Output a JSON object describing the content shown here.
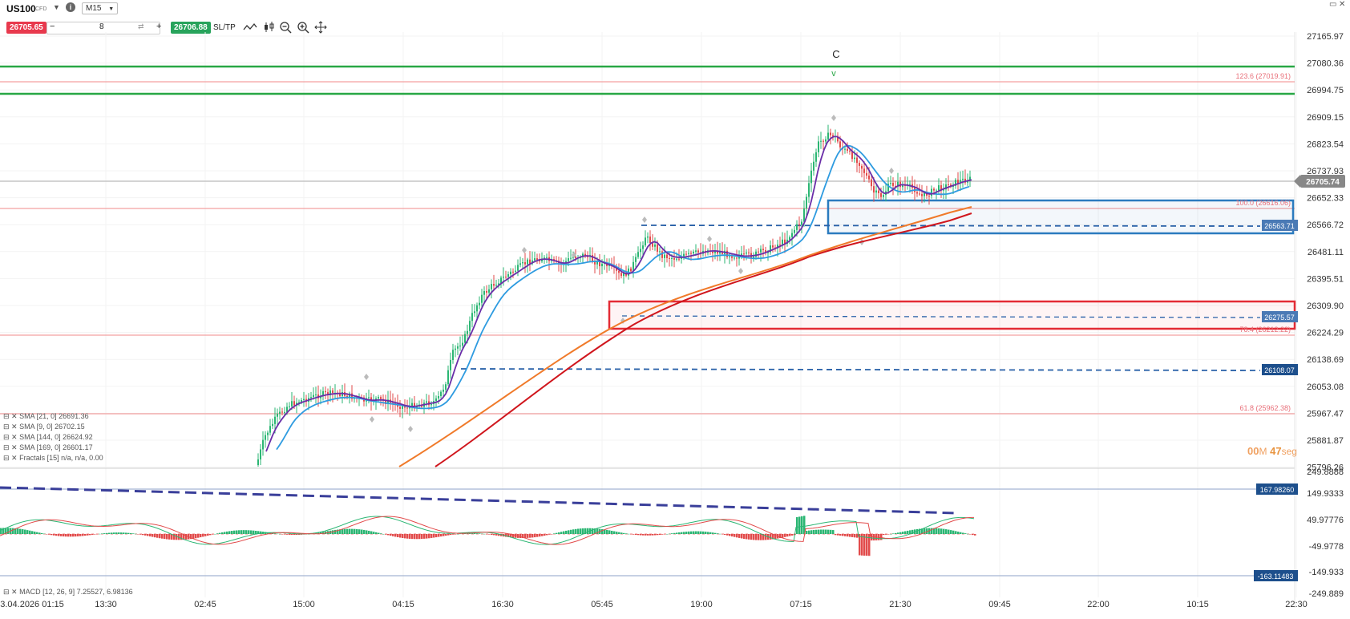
{
  "header": {
    "symbol": "US100",
    "symbol_type": "CFD",
    "timeframe": "M15",
    "sell_price": "26705.65",
    "quantity": "8",
    "buy_price": "26706.88",
    "sltp_label": "SL/TP",
    "minus": "−",
    "plus": "+"
  },
  "colors": {
    "sell": "#e8394d",
    "buy": "#27a35b",
    "ma_fast": "#6a2ea8",
    "ma_slow": "#2e9be0",
    "sma144": "#f07a2a",
    "sma169": "#d0161d",
    "zone_blue": "#2b7bbf",
    "zone_red": "#e32b35",
    "green_line": "#28a745"
  },
  "price_axis": {
    "labels": [
      "27165.97",
      "27080.36",
      "26994.75",
      "26909.15",
      "26823.54",
      "26737.93",
      "26652.33",
      "26566.72",
      "26481.11",
      "26395.51",
      "26309.90",
      "26224.29",
      "26138.69",
      "26053.08",
      "25967.47",
      "25881.87",
      "25796.26"
    ],
    "current_price": "26705.74",
    "badges": [
      "26563.71",
      "26275.57",
      "26108.07"
    ]
  },
  "fib_labels": [
    "123.6 (27019.91)",
    "100.0 (26616.06)",
    "78.4 (26212.22)",
    "61.8 (25962.38)"
  ],
  "wave_label": "C",
  "wave_marker": "v",
  "timer": {
    "minutes": "00",
    "m": "M",
    "seconds": "47",
    "s": "seg"
  },
  "indicators": [
    "SMA [21, 0] 26691.36",
    "SMA [9, 0] 26702.15",
    "SMA [144, 0] 26624.92",
    "SMA [169, 0] 26601.17",
    "Fractals [15] n/a, n/a, 0.00"
  ],
  "macd": {
    "label": "MACD [12, 26, 9] 7.25527, 6.98136",
    "axis_labels": [
      "249.8888",
      "149.9333",
      "49.97776",
      "-49.9778",
      "-149.933",
      "-249.889"
    ],
    "badges": [
      "167.98260",
      "-163.11483"
    ]
  },
  "time_axis": [
    "3.04.2026 01:15",
    "13:30",
    "02:45",
    "15:00",
    "04:15",
    "16:30",
    "05:45",
    "19:00",
    "07:15",
    "21:30",
    "09:45",
    "22:00",
    "10:15",
    "22:30"
  ]
}
